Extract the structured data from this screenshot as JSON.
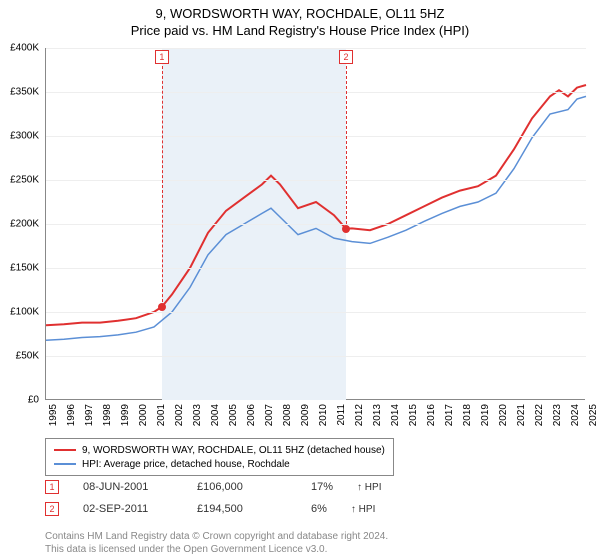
{
  "title": "9, WORDSWORTH WAY, ROCHDALE, OL11 5HZ",
  "subtitle": "Price paid vs. HM Land Registry's House Price Index (HPI)",
  "chart": {
    "type": "line",
    "ylim": [
      0,
      400000
    ],
    "ytick_step": 50000,
    "y_ticks": [
      "£0",
      "£50K",
      "£100K",
      "£150K",
      "£200K",
      "£250K",
      "£300K",
      "£350K",
      "£400K"
    ],
    "x_years": [
      1995,
      1996,
      1997,
      1998,
      1999,
      2000,
      2001,
      2002,
      2003,
      2004,
      2005,
      2006,
      2007,
      2008,
      2009,
      2010,
      2011,
      2012,
      2013,
      2014,
      2015,
      2016,
      2017,
      2018,
      2019,
      2020,
      2021,
      2022,
      2023,
      2024,
      2025
    ],
    "background_color": "#ffffff",
    "grid_color": "#eeeeee",
    "axis_color": "#888888",
    "shade_color": "#eaf1f8",
    "shade_range": [
      2001.44,
      2011.67
    ],
    "series": {
      "price_paid": {
        "color": "#e03030",
        "width": 2,
        "label": "9, WORDSWORTH WAY, ROCHDALE, OL11 5HZ (detached house)",
        "points": [
          [
            1995,
            85000
          ],
          [
            1996,
            86000
          ],
          [
            1997,
            88000
          ],
          [
            1998,
            88000
          ],
          [
            1999,
            90000
          ],
          [
            2000,
            93000
          ],
          [
            2001,
            100000
          ],
          [
            2001.44,
            106000
          ],
          [
            2002,
            120000
          ],
          [
            2003,
            150000
          ],
          [
            2004,
            190000
          ],
          [
            2005,
            215000
          ],
          [
            2006,
            230000
          ],
          [
            2007,
            245000
          ],
          [
            2007.5,
            255000
          ],
          [
            2008,
            245000
          ],
          [
            2009,
            218000
          ],
          [
            2010,
            225000
          ],
          [
            2011,
            210000
          ],
          [
            2011.67,
            194500
          ],
          [
            2012,
            195000
          ],
          [
            2013,
            193000
          ],
          [
            2014,
            200000
          ],
          [
            2015,
            210000
          ],
          [
            2016,
            220000
          ],
          [
            2017,
            230000
          ],
          [
            2018,
            238000
          ],
          [
            2019,
            243000
          ],
          [
            2020,
            255000
          ],
          [
            2021,
            285000
          ],
          [
            2022,
            320000
          ],
          [
            2023,
            345000
          ],
          [
            2023.5,
            352000
          ],
          [
            2024,
            345000
          ],
          [
            2024.5,
            355000
          ],
          [
            2025,
            358000
          ]
        ]
      },
      "hpi": {
        "color": "#5b8fd6",
        "width": 1.5,
        "label": "HPI: Average price, detached house, Rochdale",
        "points": [
          [
            1995,
            68000
          ],
          [
            1996,
            69000
          ],
          [
            1997,
            71000
          ],
          [
            1998,
            72000
          ],
          [
            1999,
            74000
          ],
          [
            2000,
            77000
          ],
          [
            2001,
            83000
          ],
          [
            2002,
            100000
          ],
          [
            2003,
            128000
          ],
          [
            2004,
            165000
          ],
          [
            2005,
            188000
          ],
          [
            2006,
            200000
          ],
          [
            2007,
            212000
          ],
          [
            2007.5,
            218000
          ],
          [
            2008,
            208000
          ],
          [
            2009,
            188000
          ],
          [
            2010,
            195000
          ],
          [
            2011,
            184000
          ],
          [
            2012,
            180000
          ],
          [
            2013,
            178000
          ],
          [
            2014,
            185000
          ],
          [
            2015,
            193000
          ],
          [
            2016,
            203000
          ],
          [
            2017,
            212000
          ],
          [
            2018,
            220000
          ],
          [
            2019,
            225000
          ],
          [
            2020,
            235000
          ],
          [
            2021,
            263000
          ],
          [
            2022,
            298000
          ],
          [
            2023,
            325000
          ],
          [
            2024,
            330000
          ],
          [
            2024.5,
            342000
          ],
          [
            2025,
            345000
          ]
        ]
      }
    },
    "markers": [
      {
        "n": "1",
        "x": 2001.44,
        "y": 106000
      },
      {
        "n": "2",
        "x": 2011.67,
        "y": 194500
      }
    ]
  },
  "sales": [
    {
      "n": "1",
      "date": "08-JUN-2001",
      "price": "£106,000",
      "pct": "17%",
      "rel": "↑ HPI"
    },
    {
      "n": "2",
      "date": "02-SEP-2011",
      "price": "£194,500",
      "pct": "6%",
      "rel": "↑ HPI"
    }
  ],
  "footer_l1": "Contains HM Land Registry data © Crown copyright and database right 2024.",
  "footer_l2": "This data is licensed under the Open Government Licence v3.0."
}
